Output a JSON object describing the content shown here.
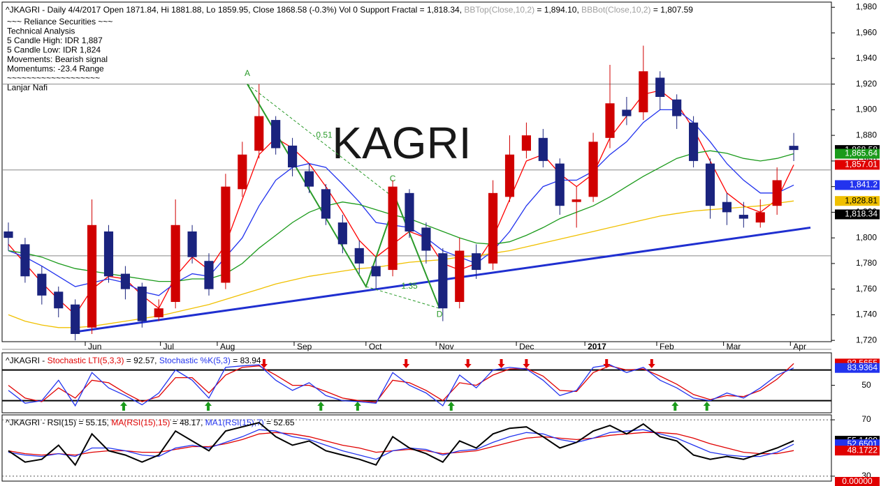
{
  "chart_data": [
    {
      "type": "candlestick",
      "title_parts": [
        {
          "text": "^JKAGRI - Daily 4/4/2017 Open 1871.84, Hi 1881.88, Lo 1859.95, Close 1868.58 (-0.3%) Vol 0 Support Fractal = 1,818.34, ",
          "color": "#000000"
        },
        {
          "text": "BBTop(Close,10,2)",
          "color": "#a0a0a0"
        },
        {
          "text": " = 1,894.10, ",
          "color": "#000000"
        },
        {
          "text": "BBBot(Close,10,2)",
          "color": "#a0a0a0"
        },
        {
          "text": " = 1,807.59",
          "color": "#000000"
        }
      ],
      "notes": [
        "~~~ Reliance Securities ~~~",
        "Technical Analysis",
        "5 Candle High: IDR 1,887",
        "5 Candle Low: IDR 1,824",
        "Movements: Bearish signal",
        "Momentums: -23.4 Range",
        "~~~~~~~~~~~~~~~~~~~",
        "Lanjar Nafi"
      ],
      "watermark": "KAGRI",
      "xlim": [
        0,
        48
      ],
      "xticks": [
        {
          "value": 4.6,
          "label": "Jun"
        },
        {
          "value": 9.1,
          "label": "Jul"
        },
        {
          "value": 12.5,
          "label": "Aug"
        },
        {
          "value": 17.1,
          "label": "Sep"
        },
        {
          "value": 21.4,
          "label": "Oct"
        },
        {
          "value": 25.6,
          "label": "Nov"
        },
        {
          "value": 30.4,
          "label": "Dec"
        },
        {
          "value": 34.5,
          "label": "2017"
        },
        {
          "value": 38.8,
          "label": "Feb"
        },
        {
          "value": 42.8,
          "label": "Mar"
        },
        {
          "value": 46.8,
          "label": "Apr"
        }
      ],
      "ylim": [
        1719,
        1984
      ],
      "yticks": [
        {
          "value": 1720,
          "label": "1,720"
        },
        {
          "value": 1740,
          "label": "1,740"
        },
        {
          "value": 1760,
          "label": "1,760"
        },
        {
          "value": 1780,
          "label": "1,780"
        },
        {
          "value": 1800,
          "label": "1,800"
        },
        {
          "value": 1820,
          "label": "1,820"
        },
        {
          "value": 1840,
          "label": "1,840"
        },
        {
          "value": 1860,
          "label": "1,860"
        },
        {
          "value": 1880,
          "label": "1,880"
        },
        {
          "value": 1900,
          "label": "1,900"
        },
        {
          "value": 1920,
          "label": "1,920"
        },
        {
          "value": 1940,
          "label": "1,940"
        },
        {
          "value": 1960,
          "label": "1,960"
        },
        {
          "value": 1980,
          "label": "1,980"
        }
      ],
      "up_color": "#d00000",
      "down_color": "#1a237e",
      "open": [
        1805,
        1795,
        1772,
        1758,
        1748,
        1730,
        1805,
        1772,
        1762,
        1738,
        1750,
        1805,
        1782,
        1765,
        1838,
        1868,
        1892,
        1872,
        1852,
        1838,
        1812,
        1792,
        1778,
        1775,
        1835,
        1808,
        1788,
        1750,
        1788,
        1780,
        1832,
        1868,
        1878,
        1858,
        1828,
        1832,
        1878,
        1900,
        1898,
        1925,
        1908,
        1890,
        1858,
        1828,
        1818,
        1812,
        1825,
        1871.84
      ],
      "high": [
        1812,
        1800,
        1778,
        1762,
        1752,
        1830,
        1810,
        1778,
        1765,
        1752,
        1830,
        1810,
        1788,
        1850,
        1875,
        1920,
        1895,
        1878,
        1858,
        1842,
        1818,
        1798,
        1785,
        1845,
        1838,
        1812,
        1792,
        1800,
        1795,
        1845,
        1880,
        1890,
        1885,
        1862,
        1840,
        1882,
        1935,
        1910,
        1950,
        1930,
        1912,
        1895,
        1862,
        1835,
        1828,
        1830,
        1855,
        1881.88
      ],
      "low": [
        1790,
        1765,
        1748,
        1738,
        1720,
        1725,
        1765,
        1752,
        1730,
        1735,
        1745,
        1780,
        1755,
        1760,
        1832,
        1862,
        1865,
        1848,
        1835,
        1810,
        1788,
        1772,
        1760,
        1770,
        1800,
        1780,
        1735,
        1745,
        1768,
        1775,
        1828,
        1862,
        1855,
        1818,
        1808,
        1828,
        1870,
        1888,
        1892,
        1900,
        1885,
        1855,
        1815,
        1810,
        1808,
        1808,
        1818,
        1859.95
      ],
      "close": [
        1800,
        1770,
        1755,
        1745,
        1725,
        1810,
        1770,
        1760,
        1735,
        1745,
        1810,
        1785,
        1760,
        1840,
        1865,
        1895,
        1870,
        1855,
        1840,
        1815,
        1795,
        1780,
        1770,
        1840,
        1805,
        1790,
        1745,
        1790,
        1775,
        1835,
        1865,
        1880,
        1860,
        1825,
        1830,
        1875,
        1905,
        1895,
        1930,
        1910,
        1895,
        1860,
        1825,
        1820,
        1815,
        1820,
        1845,
        1868.58
      ],
      "series": [
        {
          "color": "#ff0000",
          "values": [
            1795,
            1780,
            1765,
            1752,
            1740,
            1760,
            1770,
            1768,
            1755,
            1745,
            1770,
            1785,
            1775,
            1795,
            1830,
            1865,
            1878,
            1870,
            1858,
            1840,
            1820,
            1798,
            1785,
            1795,
            1805,
            1800,
            1780,
            1775,
            1780,
            1800,
            1830,
            1860,
            1865,
            1850,
            1840,
            1850,
            1878,
            1895,
            1912,
            1915,
            1905,
            1885,
            1860,
            1835,
            1825,
            1820,
            1830,
            1857.01
          ]
        },
        {
          "color": "#2233ee",
          "values": [
            1790,
            1785,
            1778,
            1770,
            1762,
            1765,
            1768,
            1765,
            1758,
            1755,
            1765,
            1772,
            1770,
            1785,
            1800,
            1825,
            1845,
            1855,
            1858,
            1855,
            1842,
            1828,
            1812,
            1810,
            1808,
            1800,
            1790,
            1785,
            1780,
            1790,
            1805,
            1825,
            1840,
            1845,
            1845,
            1852,
            1865,
            1875,
            1890,
            1900,
            1900,
            1890,
            1875,
            1858,
            1845,
            1835,
            1835,
            1841.2
          ]
        },
        {
          "color": "#1a9a1a",
          "values": [
            1790,
            1788,
            1785,
            1780,
            1776,
            1774,
            1772,
            1770,
            1768,
            1766,
            1766,
            1768,
            1768,
            1772,
            1780,
            1792,
            1802,
            1812,
            1820,
            1825,
            1828,
            1826,
            1822,
            1818,
            1815,
            1810,
            1805,
            1800,
            1796,
            1795,
            1797,
            1802,
            1808,
            1815,
            1820,
            1825,
            1832,
            1840,
            1848,
            1855,
            1862,
            1866,
            1868,
            1866,
            1862,
            1860,
            1862,
            1865.64
          ]
        },
        {
          "color": "#f0c000",
          "values": [
            1740,
            1735,
            1732,
            1730,
            1730,
            1731,
            1733,
            1735,
            1737,
            1739,
            1742,
            1745,
            1748,
            1752,
            1756,
            1760,
            1764,
            1767,
            1770,
            1772,
            1774,
            1776,
            1777,
            1779,
            1781,
            1782,
            1783,
            1785,
            1786,
            1788,
            1790,
            1793,
            1796,
            1799,
            1802,
            1805,
            1808,
            1811,
            1814,
            1817,
            1819,
            1821,
            1822,
            1823,
            1824,
            1825,
            1827,
            1828.81
          ]
        }
      ],
      "hlines": [
        1920,
        1853,
        1786,
        1713
      ],
      "trendline": {
        "x": [
          4.2,
          48
        ],
        "y": [
          1727,
          1808
        ],
        "color": "#1f2fd0"
      },
      "fib": {
        "color": "#2a9a2a",
        "x": [
          14.3,
          21.4,
          23.2,
          25.8
        ],
        "y": [
          1920,
          1762,
          1830,
          1745
        ]
      },
      "fib_labels": [
        {
          "text": "A",
          "x": 14.3,
          "y": 1928
        },
        {
          "text": "0.51",
          "x": 18.9,
          "y": 1880
        },
        {
          "text": "C",
          "x": 23.0,
          "y": 1846
        },
        {
          "text": "1.35",
          "x": 24.0,
          "y": 1762
        },
        {
          "text": "D",
          "x": 25.8,
          "y": 1740
        }
      ],
      "badges": [
        {
          "value": 1868.58,
          "label": "1,868.58",
          "color": "#000000"
        },
        {
          "value": 1865.64,
          "label": "1,865.64",
          "color": "#1a9a1a"
        },
        {
          "value": 1857.01,
          "label": "1,857.01",
          "color": "#e00000"
        },
        {
          "value": 1841.2,
          "label": "1,841.2",
          "color": "#2233ee"
        },
        {
          "value": 1828.81,
          "label": "1,828.81",
          "color": "#f0c000"
        },
        {
          "value": 1818.34,
          "label": "1,818.34",
          "color": "#000000"
        }
      ]
    },
    {
      "type": "line",
      "title_parts": [
        {
          "text": "^JKAGRI - ",
          "color": "#000000"
        },
        {
          "text": "Stochastic LTI(5,3,3)",
          "color": "#e00000"
        },
        {
          "text": " = 92.57, ",
          "color": "#000000"
        },
        {
          "text": "Stochastic %K(5,3)",
          "color": "#2233ee"
        },
        {
          "text": " = 83.94",
          "color": "#000000"
        }
      ],
      "xlim": [
        0,
        48
      ],
      "ylim": [
        -3.7,
        113.5
      ],
      "yticks": [
        50
      ],
      "hlines": [
        80,
        20
      ],
      "series": [
        {
          "color": "#e00000",
          "values": [
            50,
            25,
            18,
            45,
            25,
            60,
            55,
            35,
            18,
            28,
            65,
            65,
            35,
            70,
            85,
            88,
            70,
            50,
            50,
            38,
            25,
            20,
            17,
            60,
            55,
            40,
            20,
            55,
            50,
            70,
            82,
            83,
            68,
            40,
            38,
            75,
            88,
            80,
            82,
            68,
            52,
            32,
            22,
            30,
            28,
            40,
            62,
            92.57
          ]
        },
        {
          "color": "#2233ee",
          "values": [
            40,
            15,
            20,
            60,
            10,
            75,
            45,
            30,
            12,
            35,
            80,
            60,
            25,
            85,
            88,
            90,
            60,
            40,
            55,
            30,
            20,
            18,
            15,
            75,
            50,
            35,
            10,
            70,
            45,
            80,
            85,
            82,
            60,
            30,
            40,
            85,
            90,
            75,
            85,
            60,
            45,
            25,
            20,
            35,
            25,
            45,
            70,
            83.94
          ]
        }
      ],
      "buy_signals": [
        6.9,
        11.96,
        18.7,
        20.9,
        26.5,
        39.9,
        41.8
      ],
      "sell_signals": [
        15.3,
        23.8,
        27.5,
        29.5,
        31.0,
        35.8,
        38.5
      ],
      "badges": [
        {
          "value": 92.5655,
          "label": "92.5655",
          "color": "#e00000"
        },
        {
          "value": 83.9364,
          "label": "83.9364",
          "color": "#2233ee"
        }
      ]
    },
    {
      "type": "line",
      "title_parts": [
        {
          "text": "^JKAGRI - RSI(15) = 55.15, ",
          "color": "#000000"
        },
        {
          "text": "MA(RSI(15),15)",
          "color": "#e00000"
        },
        {
          "text": " = 48.17, ",
          "color": "#000000"
        },
        {
          "text": "MA1(RSI(15),7)",
          "color": "#2233ee"
        },
        {
          "text": " = 52.65",
          "color": "#000000"
        }
      ],
      "xlim": [
        0,
        48
      ],
      "ylim": [
        26.5,
        73.5
      ],
      "yticks": [
        70,
        30
      ],
      "hlines": [
        70,
        30
      ],
      "series": [
        {
          "color": "#e00000",
          "values": [
            48,
            46,
            45,
            46,
            45,
            47,
            48,
            48,
            47,
            47,
            49,
            51,
            51,
            53,
            56,
            60,
            61,
            60,
            58,
            55,
            52,
            50,
            47,
            48,
            49,
            48,
            46,
            47,
            48,
            51,
            54,
            57,
            58,
            57,
            56,
            57,
            59,
            60,
            61,
            61,
            60,
            57,
            53,
            50,
            47,
            46,
            46,
            48.17
          ]
        },
        {
          "color": "#2233ee",
          "values": [
            47,
            45,
            44,
            46,
            44,
            50,
            50,
            48,
            45,
            44,
            50,
            52,
            50,
            54,
            58,
            63,
            62,
            58,
            56,
            52,
            48,
            45,
            42,
            48,
            50,
            49,
            45,
            48,
            49,
            54,
            58,
            61,
            60,
            56,
            54,
            57,
            61,
            62,
            63,
            60,
            57,
            52,
            47,
            45,
            44,
            44,
            47,
            52.65
          ]
        },
        {
          "color": "#000000",
          "values": [
            48,
            40,
            42,
            52,
            38,
            60,
            48,
            45,
            40,
            45,
            62,
            55,
            48,
            62,
            65,
            68,
            58,
            52,
            55,
            48,
            45,
            42,
            38,
            58,
            50,
            46,
            40,
            55,
            50,
            60,
            64,
            65,
            58,
            50,
            54,
            62,
            66,
            60,
            67,
            58,
            55,
            45,
            42,
            44,
            42,
            46,
            50,
            55.15
          ]
        }
      ],
      "badges": [
        {
          "value": 55.1499,
          "label": "55.1499",
          "color": "#000000"
        },
        {
          "value": 52.6501,
          "label": "52.6501",
          "color": "#2233ee"
        },
        {
          "value": 48.1722,
          "label": "48.1722",
          "color": "#e00000"
        }
      ],
      "footer_badge": "0.00000"
    }
  ]
}
